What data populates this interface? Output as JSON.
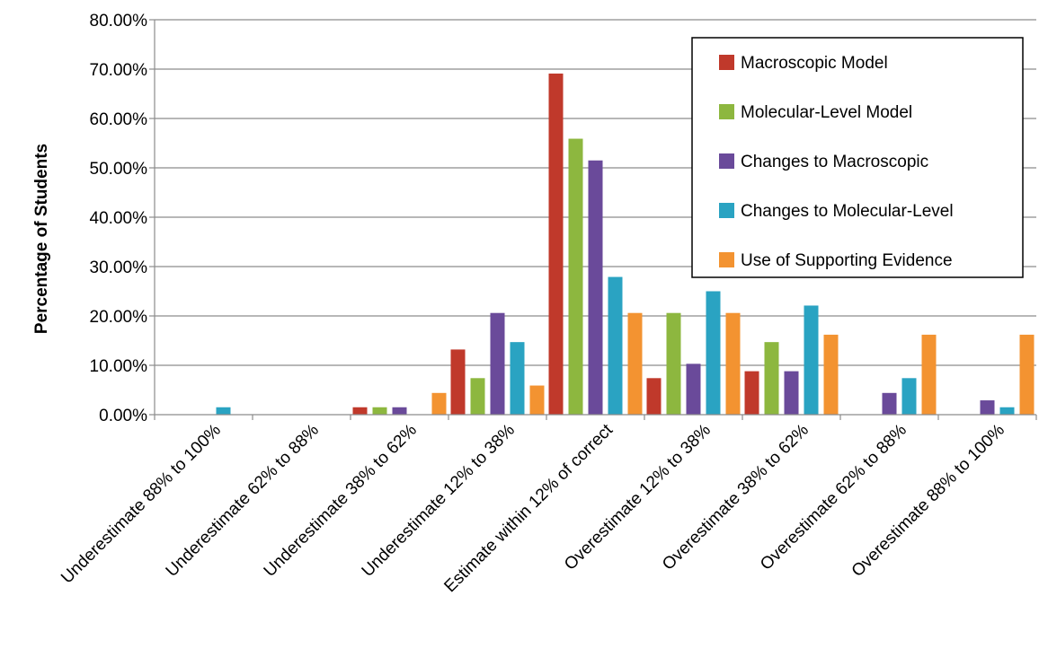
{
  "chart_data": {
    "type": "bar",
    "title": "",
    "xlabel": "",
    "ylabel": "Percentage of Students",
    "ylim": [
      0,
      80
    ],
    "ytick_values": [
      0,
      10,
      20,
      30,
      40,
      50,
      60,
      70,
      80
    ],
    "ytick_labels": [
      "0.00%",
      "10.00%",
      "20.00%",
      "30.00%",
      "40.00%",
      "50.00%",
      "60.00%",
      "70.00%",
      "80.00%"
    ],
    "grid": "horizontal",
    "legend_position": "top-right",
    "categories": [
      "Underestimate 88% to 100%",
      "Underestimate 62% to 88%",
      "Underestimate 38% to 62%",
      "Underestimate 12% to 38%",
      "Estimate within 12% of correct",
      "Overestimate 12% to 38%",
      "Overestimate 38% to 62%",
      "Overestimate 62% to 88%",
      "Overestimate 88% to 100%"
    ],
    "series": [
      {
        "name": "Macroscopic Model",
        "color": "#c0392b",
        "values": [
          0,
          0,
          1.5,
          13.2,
          69.1,
          7.4,
          8.8,
          0,
          0
        ]
      },
      {
        "name": "Molecular-Level Model",
        "color": "#8db73f",
        "values": [
          0,
          0,
          1.5,
          7.4,
          55.9,
          20.6,
          14.7,
          0,
          0
        ]
      },
      {
        "name": "Changes to Macroscopic",
        "color": "#6a4a9a",
        "values": [
          0,
          0,
          1.5,
          20.6,
          51.5,
          10.3,
          8.8,
          4.4,
          2.9
        ]
      },
      {
        "name": "Changes to Molecular-Level",
        "color": "#2aa3c2",
        "values": [
          1.5,
          0,
          0,
          14.7,
          27.9,
          25.0,
          22.1,
          7.4,
          1.5
        ]
      },
      {
        "name": "Use of Supporting Evidence",
        "color": "#f39331",
        "values": [
          0,
          0,
          4.4,
          5.9,
          20.6,
          20.6,
          16.2,
          16.2,
          16.2
        ]
      }
    ]
  }
}
